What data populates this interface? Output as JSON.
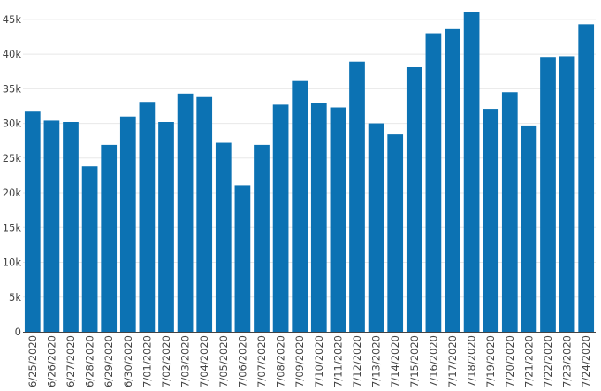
{
  "chart_data": {
    "type": "bar",
    "title": "",
    "xlabel": "",
    "ylabel": "",
    "bar_color": "#0c72b3",
    "grid": true,
    "ylim": [
      0,
      46000
    ],
    "yticks": [
      0,
      5000,
      10000,
      15000,
      20000,
      25000,
      30000,
      35000,
      40000,
      45000
    ],
    "ytick_labels": [
      "0",
      "5k",
      "10k",
      "15k",
      "20k",
      "25k",
      "30k",
      "35k",
      "40k",
      "45k"
    ],
    "categories": [
      "6/25/2020",
      "6/26/2020",
      "6/27/2020",
      "6/28/2020",
      "6/29/2020",
      "6/30/2020",
      "7/01/2020",
      "7/02/2020",
      "7/03/2020",
      "7/04/2020",
      "7/05/2020",
      "7/06/2020",
      "7/07/2020",
      "7/08/2020",
      "7/09/2020",
      "7/10/2020",
      "7/11/2020",
      "7/12/2020",
      "7/13/2020",
      "7/14/2020",
      "7/15/2020",
      "7/16/2020",
      "7/17/2020",
      "7/18/2020",
      "7/19/2020",
      "7/20/2020",
      "7/21/2020",
      "7/22/2020",
      "7/23/2020",
      "7/24/2020"
    ],
    "values": [
      31700,
      30400,
      30200,
      23800,
      26900,
      31000,
      33100,
      30200,
      34300,
      33800,
      27200,
      21100,
      26900,
      32700,
      36100,
      33000,
      32300,
      38900,
      30000,
      28400,
      38100,
      43000,
      43600,
      46100,
      32100,
      34500,
      29700,
      39600,
      39700,
      44300
    ]
  }
}
